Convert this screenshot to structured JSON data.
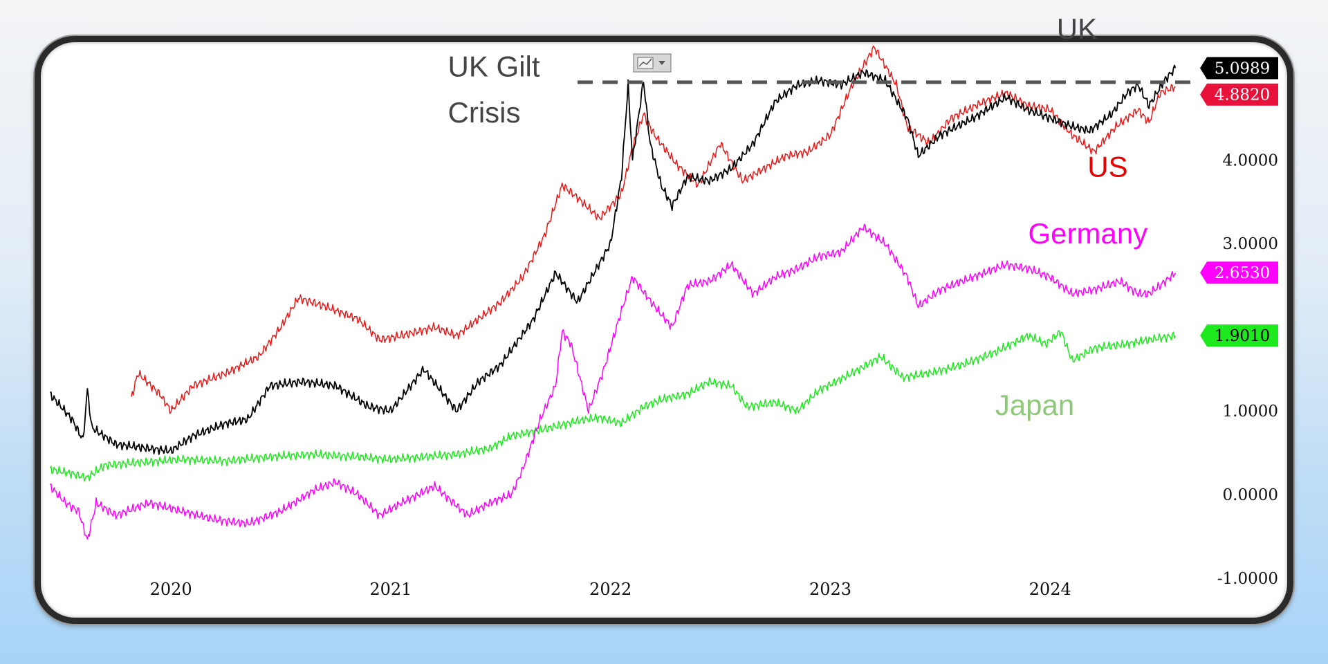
{
  "chart_data": {
    "type": "line",
    "title": "",
    "xlabel": "",
    "ylabel": "",
    "x_ticks": [
      "2020",
      "2021",
      "2022",
      "2023",
      "2024"
    ],
    "y_ticks": [
      "-1.0000",
      "0.0000",
      "1.0000",
      "3.0000",
      "4.0000"
    ],
    "ylim": [
      -1.2,
      5.5
    ],
    "xlim": [
      2019.53,
      2024.76
    ],
    "grid": false,
    "legend": "none",
    "series": [
      {
        "name": "UK",
        "color": "#000000",
        "last_value": "5.0989",
        "tag_bg": "#000000",
        "tag_fg": "#ffffff",
        "points": [
          [
            2019.55,
            1.2
          ],
          [
            2019.6,
            1.05
          ],
          [
            2019.65,
            0.9
          ],
          [
            2019.7,
            0.65
          ],
          [
            2019.72,
            1.25
          ],
          [
            2019.74,
            0.8
          ],
          [
            2019.85,
            0.6
          ],
          [
            2020.0,
            0.55
          ],
          [
            2020.1,
            0.52
          ],
          [
            2020.2,
            0.7
          ],
          [
            2020.35,
            0.85
          ],
          [
            2020.45,
            0.9
          ],
          [
            2020.55,
            1.3
          ],
          [
            2020.7,
            1.35
          ],
          [
            2020.85,
            1.3
          ],
          [
            2021.0,
            1.05
          ],
          [
            2021.1,
            1.0
          ],
          [
            2021.25,
            1.5
          ],
          [
            2021.4,
            1.0
          ],
          [
            2021.5,
            1.35
          ],
          [
            2021.6,
            1.55
          ],
          [
            2021.75,
            2.1
          ],
          [
            2021.85,
            2.65
          ],
          [
            2021.95,
            2.3
          ],
          [
            2022.1,
            3.0
          ],
          [
            2022.15,
            3.8
          ],
          [
            2022.18,
            4.9
          ],
          [
            2022.2,
            4.0
          ],
          [
            2022.25,
            4.95
          ],
          [
            2022.28,
            4.2
          ],
          [
            2022.33,
            3.7
          ],
          [
            2022.38,
            3.45
          ],
          [
            2022.45,
            3.8
          ],
          [
            2022.55,
            3.75
          ],
          [
            2022.65,
            3.9
          ],
          [
            2022.75,
            4.2
          ],
          [
            2022.85,
            4.7
          ],
          [
            2022.95,
            4.9
          ],
          [
            2023.05,
            4.95
          ],
          [
            2023.15,
            4.9
          ],
          [
            2023.25,
            5.05
          ],
          [
            2023.35,
            4.95
          ],
          [
            2023.45,
            4.5
          ],
          [
            2023.5,
            4.05
          ],
          [
            2023.6,
            4.3
          ],
          [
            2023.75,
            4.5
          ],
          [
            2023.9,
            4.75
          ],
          [
            2024.0,
            4.6
          ],
          [
            2024.1,
            4.5
          ],
          [
            2024.2,
            4.4
          ],
          [
            2024.28,
            4.35
          ],
          [
            2024.38,
            4.55
          ],
          [
            2024.45,
            4.8
          ],
          [
            2024.5,
            4.9
          ],
          [
            2024.55,
            4.65
          ],
          [
            2024.62,
            4.95
          ],
          [
            2024.67,
            5.1
          ]
        ]
      },
      {
        "name": "US",
        "color": "#e61a1a",
        "last_value": "4.8820",
        "tag_bg": "#e8113a",
        "tag_fg": "#ffffff",
        "points": [
          [
            2019.92,
            1.15
          ],
          [
            2019.95,
            1.45
          ],
          [
            2020.05,
            1.2
          ],
          [
            2020.1,
            1.0
          ],
          [
            2020.2,
            1.3
          ],
          [
            2020.35,
            1.45
          ],
          [
            2020.5,
            1.65
          ],
          [
            2020.6,
            2.0
          ],
          [
            2020.68,
            2.35
          ],
          [
            2020.8,
            2.25
          ],
          [
            2020.95,
            2.1
          ],
          [
            2021.05,
            1.85
          ],
          [
            2021.15,
            1.9
          ],
          [
            2021.3,
            2.0
          ],
          [
            2021.4,
            1.9
          ],
          [
            2021.5,
            2.1
          ],
          [
            2021.6,
            2.3
          ],
          [
            2021.7,
            2.6
          ],
          [
            2021.8,
            3.1
          ],
          [
            2021.88,
            3.7
          ],
          [
            2021.95,
            3.55
          ],
          [
            2022.05,
            3.3
          ],
          [
            2022.15,
            3.6
          ],
          [
            2022.2,
            4.15
          ],
          [
            2022.25,
            4.55
          ],
          [
            2022.3,
            4.3
          ],
          [
            2022.4,
            3.95
          ],
          [
            2022.5,
            3.7
          ],
          [
            2022.6,
            4.2
          ],
          [
            2022.7,
            3.75
          ],
          [
            2022.8,
            3.9
          ],
          [
            2022.9,
            4.05
          ],
          [
            2023.0,
            4.1
          ],
          [
            2023.1,
            4.3
          ],
          [
            2023.2,
            4.9
          ],
          [
            2023.3,
            5.35
          ],
          [
            2023.4,
            4.9
          ],
          [
            2023.45,
            4.4
          ],
          [
            2023.55,
            4.2
          ],
          [
            2023.65,
            4.5
          ],
          [
            2023.8,
            4.7
          ],
          [
            2023.9,
            4.8
          ],
          [
            2024.0,
            4.65
          ],
          [
            2024.1,
            4.6
          ],
          [
            2024.2,
            4.3
          ],
          [
            2024.3,
            4.1
          ],
          [
            2024.4,
            4.4
          ],
          [
            2024.5,
            4.6
          ],
          [
            2024.55,
            4.45
          ],
          [
            2024.6,
            4.8
          ],
          [
            2024.67,
            4.88
          ]
        ]
      },
      {
        "name": "Germany",
        "color": "#ff00ff",
        "last_value": "2.6530",
        "tag_bg": "#ff00ff",
        "tag_fg": "#ffffff",
        "points": [
          [
            2019.55,
            0.1
          ],
          [
            2019.62,
            -0.1
          ],
          [
            2019.68,
            -0.2
          ],
          [
            2019.72,
            -0.55
          ],
          [
            2019.76,
            -0.1
          ],
          [
            2019.85,
            -0.25
          ],
          [
            2020.0,
            -0.1
          ],
          [
            2020.15,
            -0.2
          ],
          [
            2020.3,
            -0.3
          ],
          [
            2020.45,
            -0.35
          ],
          [
            2020.6,
            -0.2
          ],
          [
            2020.75,
            0.05
          ],
          [
            2020.85,
            0.15
          ],
          [
            2020.95,
            0.0
          ],
          [
            2021.05,
            -0.25
          ],
          [
            2021.15,
            -0.1
          ],
          [
            2021.3,
            0.1
          ],
          [
            2021.45,
            -0.25
          ],
          [
            2021.55,
            -0.1
          ],
          [
            2021.65,
            0.0
          ],
          [
            2021.7,
            0.3
          ],
          [
            2021.78,
            0.9
          ],
          [
            2021.85,
            1.3
          ],
          [
            2021.88,
            1.95
          ],
          [
            2021.92,
            1.8
          ],
          [
            2022.0,
            1.0
          ],
          [
            2022.07,
            1.5
          ],
          [
            2022.15,
            2.2
          ],
          [
            2022.2,
            2.6
          ],
          [
            2022.3,
            2.25
          ],
          [
            2022.38,
            2.0
          ],
          [
            2022.45,
            2.5
          ],
          [
            2022.55,
            2.55
          ],
          [
            2022.65,
            2.75
          ],
          [
            2022.75,
            2.4
          ],
          [
            2022.85,
            2.6
          ],
          [
            2022.95,
            2.7
          ],
          [
            2023.05,
            2.85
          ],
          [
            2023.15,
            2.9
          ],
          [
            2023.25,
            3.2
          ],
          [
            2023.35,
            3.0
          ],
          [
            2023.45,
            2.6
          ],
          [
            2023.5,
            2.25
          ],
          [
            2023.6,
            2.45
          ],
          [
            2023.75,
            2.6
          ],
          [
            2023.9,
            2.75
          ],
          [
            2024.0,
            2.7
          ],
          [
            2024.1,
            2.6
          ],
          [
            2024.2,
            2.4
          ],
          [
            2024.3,
            2.45
          ],
          [
            2024.42,
            2.55
          ],
          [
            2024.5,
            2.4
          ],
          [
            2024.55,
            2.4
          ],
          [
            2024.6,
            2.5
          ],
          [
            2024.67,
            2.65
          ]
        ]
      },
      {
        "name": "Japan",
        "color": "#1ee81e",
        "last_value": "1.9010",
        "tag_bg": "#1ee81e",
        "tag_fg": "#000000",
        "points": [
          [
            2019.55,
            0.3
          ],
          [
            2019.65,
            0.25
          ],
          [
            2019.72,
            0.2
          ],
          [
            2019.8,
            0.35
          ],
          [
            2019.95,
            0.38
          ],
          [
            2020.15,
            0.42
          ],
          [
            2020.35,
            0.4
          ],
          [
            2020.55,
            0.45
          ],
          [
            2020.75,
            0.48
          ],
          [
            2020.95,
            0.45
          ],
          [
            2021.1,
            0.42
          ],
          [
            2021.25,
            0.45
          ],
          [
            2021.4,
            0.48
          ],
          [
            2021.55,
            0.55
          ],
          [
            2021.65,
            0.7
          ],
          [
            2021.8,
            0.78
          ],
          [
            2021.95,
            0.88
          ],
          [
            2022.05,
            0.92
          ],
          [
            2022.15,
            0.85
          ],
          [
            2022.25,
            1.05
          ],
          [
            2022.35,
            1.15
          ],
          [
            2022.45,
            1.2
          ],
          [
            2022.55,
            1.35
          ],
          [
            2022.65,
            1.3
          ],
          [
            2022.72,
            1.05
          ],
          [
            2022.85,
            1.1
          ],
          [
            2022.95,
            1.0
          ],
          [
            2023.05,
            1.25
          ],
          [
            2023.2,
            1.45
          ],
          [
            2023.33,
            1.65
          ],
          [
            2023.43,
            1.4
          ],
          [
            2023.55,
            1.45
          ],
          [
            2023.7,
            1.55
          ],
          [
            2023.85,
            1.7
          ],
          [
            2024.0,
            1.9
          ],
          [
            2024.08,
            1.8
          ],
          [
            2024.15,
            1.95
          ],
          [
            2024.2,
            1.6
          ],
          [
            2024.3,
            1.75
          ],
          [
            2024.45,
            1.8
          ],
          [
            2024.55,
            1.85
          ],
          [
            2024.67,
            1.9
          ]
        ]
      }
    ],
    "reference_line": {
      "y": 4.93,
      "x_start": 2021.95,
      "x_end": 2024.76,
      "style": "dashed",
      "color": "#555555"
    },
    "annotations": [
      {
        "text": "UK Gilt",
        "x": 2021.36,
        "y": 5.0,
        "color": "#444444"
      },
      {
        "text": "Crisis",
        "x": 2021.36,
        "y": 4.45,
        "color": "#444444"
      },
      {
        "text": "UK",
        "x": 2024.13,
        "y": 5.45,
        "color": "#444444"
      },
      {
        "text": "US",
        "x": 2024.27,
        "y": 3.8,
        "color": "#e60000"
      },
      {
        "text": "Germany",
        "x": 2024.0,
        "y": 3.0,
        "color": "#ff00ff"
      },
      {
        "text": "Japan",
        "x": 2023.85,
        "y": 0.95,
        "color": "#8ec97a"
      }
    ]
  }
}
